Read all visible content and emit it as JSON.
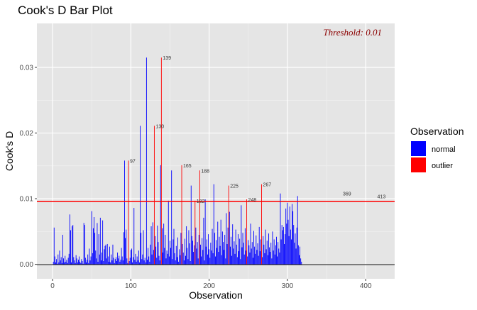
{
  "chart_data": {
    "type": "bar",
    "title": "Cook's D Bar Plot",
    "xlabel": "Observation",
    "ylabel": "Cook's D",
    "annotation": "Threshold: 0.01",
    "threshold_value": 0.00957,
    "xlim": [
      -20,
      437
    ],
    "ylim": [
      -0.0022,
      0.0367
    ],
    "x_ticks": [
      0,
      100,
      200,
      300,
      400
    ],
    "x_tick_labels": [
      "0",
      "100",
      "200",
      "300",
      "400"
    ],
    "y_ticks": [
      0,
      0.01,
      0.02,
      0.03
    ],
    "y_tick_labels": [
      "0.00",
      "0.01",
      "0.02",
      "0.03"
    ],
    "legend": {
      "title": "Observation",
      "position": "right",
      "entries": [
        {
          "label": "normal",
          "color": "#0000FF"
        },
        {
          "label": "outlier",
          "color": "#FF0000"
        }
      ]
    },
    "outliers": [
      {
        "x": 97,
        "value": 0.0158,
        "label": "97"
      },
      {
        "x": 130,
        "value": 0.0211,
        "label": "130"
      },
      {
        "x": 139,
        "value": 0.0315,
        "label": "139"
      },
      {
        "x": 165,
        "value": 0.0151,
        "label": "165"
      },
      {
        "x": 182,
        "value": 0.0097,
        "label": "182"
      },
      {
        "x": 188,
        "value": 0.0143,
        "label": "188"
      },
      {
        "x": 225,
        "value": 0.012,
        "label": "225"
      },
      {
        "x": 248,
        "value": 0.0099,
        "label": "248"
      },
      {
        "x": 267,
        "value": 0.0122,
        "label": "267"
      },
      {
        "x": 369,
        "value": 0.0108,
        "label": "369"
      },
      {
        "x": 413,
        "value": 0.0104,
        "label": "413"
      }
    ],
    "values": [
      0.0004,
      0.0056,
      0.0012,
      0.0003,
      0.0008,
      0.0001,
      0.0015,
      0.0003,
      0.0021,
      0.0006,
      0.0011,
      0.0002,
      0.0045,
      0.0009,
      0.0003,
      0.0013,
      0.0004,
      0.0007,
      0.0002,
      0.001,
      0.0016,
      0.0076,
      0.0052,
      0.0003,
      0.0058,
      0.006,
      0.0011,
      0.0006,
      0.0002,
      0.0014,
      0.0009,
      0.0003,
      0.0007,
      0.0012,
      0.0004,
      0.0002,
      0.0008,
      0.0005,
      0.0001,
      0.0063,
      0.006,
      0.001,
      0.0003,
      0.0007,
      0.0015,
      0.0002,
      0.0024,
      0.0006,
      0.0012,
      0.0081,
      0.0017,
      0.0055,
      0.0072,
      0.0048,
      0.0021,
      0.0009,
      0.0063,
      0.0004,
      0.0046,
      0.0015,
      0.0071,
      0.0006,
      0.0018,
      0.0067,
      0.0005,
      0.0023,
      0.0028,
      0.003,
      0.0009,
      0.0031,
      0.0012,
      0.0004,
      0.0027,
      0.0003,
      0.0015,
      0.0006,
      0.003,
      0.001,
      0.0002,
      0.0008,
      0.0011,
      0.0005,
      0.0018,
      0.0009,
      0.0013,
      0.0004,
      0.0007,
      0.0025,
      0.0012,
      0.0006,
      0.0049,
      0.0158,
      0.004,
      0.0053,
      0.0009,
      0.0002,
      0.0014,
      0.0005,
      0.001,
      0.0022,
      0.0024,
      0.0003,
      0.0011,
      0.0086,
      0.0007,
      0.0016,
      0.0004,
      0.0012,
      0.0006,
      0.0021,
      0.0003,
      0.0211,
      0.0048,
      0.0008,
      0.0015,
      0.0052,
      0.0006,
      0.001,
      0.0003,
      0.0315,
      0.0007,
      0.0025,
      0.0012,
      0.0004,
      0.003,
      0.0058,
      0.0015,
      0.0064,
      0.0022,
      0.0008,
      0.0043,
      0.0027,
      0.001,
      0.0059,
      0.0034,
      0.0013,
      0.0006,
      0.0151,
      0.0041,
      0.0055,
      0.0018,
      0.0062,
      0.0025,
      0.0045,
      0.0009,
      0.0021,
      0.0016,
      0.0097,
      0.0012,
      0.0036,
      0.0025,
      0.0143,
      0.0008,
      0.0038,
      0.0054,
      0.0017,
      0.0006,
      0.0028,
      0.0011,
      0.0041,
      0.0004,
      0.0023,
      0.0014,
      0.0048,
      0.0009,
      0.0031,
      0.0018,
      0.0006,
      0.0039,
      0.0013,
      0.0058,
      0.0025,
      0.0008,
      0.0052,
      0.0032,
      0.0005,
      0.012,
      0.0043,
      0.0036,
      0.0019,
      0.0029,
      0.0011,
      0.0056,
      0.0024,
      0.0034,
      0.0009,
      0.0045,
      0.0017,
      0.003,
      0.0012,
      0.004,
      0.0022,
      0.0071,
      0.0006,
      0.0099,
      0.0027,
      0.0038,
      0.0015,
      0.0046,
      0.0023,
      0.001,
      0.0033,
      0.0021,
      0.0054,
      0.0017,
      0.0122,
      0.0048,
      0.0012,
      0.0037,
      0.0025,
      0.0065,
      0.0019,
      0.0042,
      0.0028,
      0.0068,
      0.0014,
      0.005,
      0.0034,
      0.0022,
      0.0045,
      0.0009,
      0.0078,
      0.0031,
      0.0056,
      0.0018,
      0.008,
      0.0027,
      0.0042,
      0.0013,
      0.0061,
      0.0024,
      0.0035,
      0.0016,
      0.0053,
      0.003,
      0.0011,
      0.0046,
      0.002,
      0.0039,
      0.0008,
      0.009,
      0.0026,
      0.0048,
      0.0033,
      0.0015,
      0.0055,
      0.0021,
      0.0041,
      0.0012,
      0.0037,
      0.0029,
      0.0018,
      0.0062,
      0.0024,
      0.0034,
      0.001,
      0.0051,
      0.0027,
      0.0016,
      0.0044,
      0.0022,
      0.0032,
      0.0013,
      0.0057,
      0.002,
      0.0038,
      0.0025,
      0.0011,
      0.0043,
      0.003,
      0.0017,
      0.0053,
      0.0023,
      0.0036,
      0.0014,
      0.0047,
      0.0026,
      0.0019,
      0.0033,
      0.0009,
      0.005,
      0.0021,
      0.0038,
      0.0015,
      0.0029,
      0.0042,
      0.0012,
      0.0034,
      0.0024,
      0.0018,
      0.0108,
      0.0038,
      0.006,
      0.0052,
      0.0057,
      0.0031,
      0.0046,
      0.0085,
      0.0062,
      0.0094,
      0.0068,
      0.0043,
      0.0088,
      0.0053,
      0.0038,
      0.0092,
      0.0081,
      0.006,
      0.0033,
      0.0047,
      0.0024,
      0.0056,
      0.0104,
      0.0029,
      0.0014,
      0.0027,
      0.0009,
      0.0004
    ]
  }
}
